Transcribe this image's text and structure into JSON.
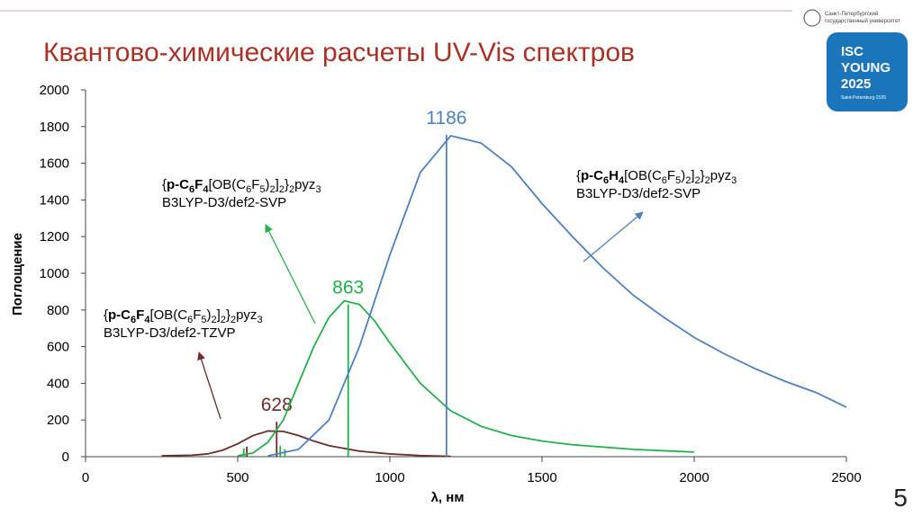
{
  "header": {
    "title": "Квантово-химические расчеты UV-Vis спектров",
    "logo": {
      "university": [
        "Санкт-Петербургский",
        "государственный университет"
      ],
      "badge": [
        "ISC",
        "YOUNG",
        "2025"
      ],
      "badge_sub": "Saint-Petersburg 2025"
    }
  },
  "slide_number": "5",
  "chart_data": {
    "type": "line",
    "xlabel": "λ, нм",
    "ylabel": "Поглощение",
    "xlim": [
      0,
      2500
    ],
    "xticks": [
      0,
      500,
      1000,
      1500,
      2000,
      2500
    ],
    "ylim": [
      0,
      2000
    ],
    "yticks": [
      0,
      200,
      400,
      600,
      800,
      1000,
      1200,
      1400,
      1600,
      1800,
      2000
    ],
    "series": [
      {
        "color": "#6b2c2c",
        "x": [
          250,
          350,
          400,
          450,
          500,
          550,
          600,
          650,
          700,
          750,
          800,
          900,
          1000,
          1100,
          1200
        ],
        "values": [
          5,
          8,
          15,
          35,
          70,
          115,
          140,
          138,
          115,
          85,
          60,
          30,
          15,
          6,
          2
        ],
        "sticks": {
          "x": [
            628,
            530
          ],
          "values": [
            190,
            55
          ]
        },
        "peak": 628,
        "annotation": [
          {
            "text": "{"
          },
          {
            "text": "p-C",
            "bold": true
          },
          {
            "text": "6",
            "bold": true,
            "sub": true
          },
          {
            "text": "F",
            "bold": true
          },
          {
            "text": "4",
            "bold": true,
            "sub": true
          },
          {
            "text": "[OB(C"
          },
          {
            "text": "6",
            "sub": true
          },
          {
            "text": "F"
          },
          {
            "text": "5",
            "sub": true
          },
          {
            "text": ")"
          },
          {
            "text": "2",
            "sub": true
          },
          {
            "text": "]"
          },
          {
            "text": "2",
            "sub": true
          },
          {
            "text": "}"
          },
          {
            "text": "2",
            "sub": true
          },
          {
            "text": "pyz"
          },
          {
            "text": "3",
            "sub": true
          }
        ],
        "method": "B3LYP-D3/def2-TZVP"
      },
      {
        "color": "#22b04b",
        "x": [
          500,
          550,
          600,
          650,
          700,
          750,
          800,
          850,
          900,
          950,
          1000,
          1100,
          1200,
          1300,
          1400,
          1500,
          1600,
          1800,
          2000
        ],
        "values": [
          5,
          20,
          80,
          200,
          400,
          600,
          760,
          850,
          830,
          740,
          620,
          400,
          250,
          165,
          115,
          85,
          65,
          40,
          25
        ],
        "sticks": {
          "x": [
            863,
            520,
            640,
            655
          ],
          "values": [
            830,
            45,
            60,
            40
          ]
        },
        "peak": 863,
        "annotation": [
          {
            "text": "{"
          },
          {
            "text": "p-C",
            "bold": true
          },
          {
            "text": "6",
            "bold": true,
            "sub": true
          },
          {
            "text": "F",
            "bold": true
          },
          {
            "text": "4",
            "bold": true,
            "sub": true
          },
          {
            "text": "[OB(C"
          },
          {
            "text": "6",
            "sub": true
          },
          {
            "text": "F"
          },
          {
            "text": "5",
            "sub": true
          },
          {
            "text": ")"
          },
          {
            "text": "2",
            "sub": true
          },
          {
            "text": "]"
          },
          {
            "text": "2",
            "sub": true
          },
          {
            "text": "}"
          },
          {
            "text": "2",
            "sub": true
          },
          {
            "text": "pyz"
          },
          {
            "text": "3",
            "sub": true
          }
        ],
        "method": "B3LYP-D3/def2-SVP"
      },
      {
        "color": "#4f7fbf",
        "x": [
          600,
          700,
          800,
          900,
          1000,
          1100,
          1200,
          1300,
          1400,
          1500,
          1600,
          1700,
          1800,
          1900,
          2000,
          2100,
          2200,
          2300,
          2400,
          2500
        ],
        "values": [
          5,
          40,
          200,
          600,
          1100,
          1550,
          1750,
          1710,
          1580,
          1380,
          1200,
          1030,
          880,
          760,
          650,
          560,
          480,
          410,
          350,
          270
        ],
        "sticks": {
          "x": [
            1186
          ],
          "values": [
            1755
          ]
        },
        "peak": 1186,
        "annotation": [
          {
            "text": "{"
          },
          {
            "text": "p-C",
            "bold": true
          },
          {
            "text": "6",
            "bold": true,
            "sub": true
          },
          {
            "text": "H",
            "bold": true
          },
          {
            "text": "4",
            "bold": true,
            "sub": true
          },
          {
            "text": "[OB(C"
          },
          {
            "text": "6",
            "sub": true
          },
          {
            "text": "F"
          },
          {
            "text": "5",
            "sub": true
          },
          {
            "text": ")"
          },
          {
            "text": "2",
            "sub": true
          },
          {
            "text": "]"
          },
          {
            "text": "2",
            "sub": true
          },
          {
            "text": "}"
          },
          {
            "text": "2",
            "sub": true
          },
          {
            "text": "pyz"
          },
          {
            "text": "3",
            "sub": true
          }
        ],
        "method": "B3LYP-D3/def2-SVP"
      }
    ]
  }
}
